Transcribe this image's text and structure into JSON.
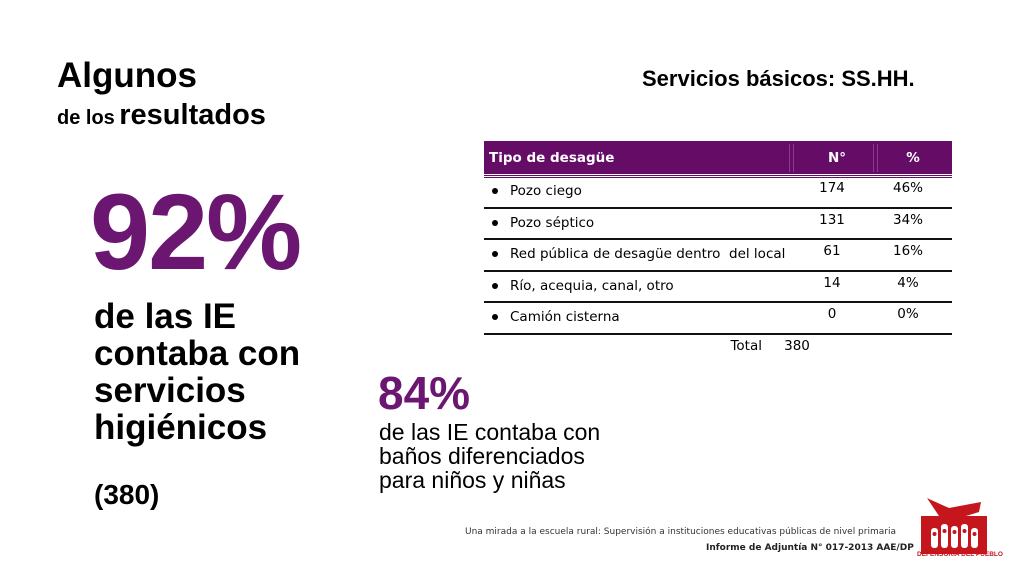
{
  "header": {
    "title_line1": "Algunos",
    "title_line2_small": "de los",
    "title_line2_big": "resultados",
    "section_title": "Servicios básicos: SS.HH."
  },
  "highlight_main": {
    "percent": "92%",
    "description": "de las IE contaba con servicios higiénicos",
    "count": "(380)"
  },
  "highlight_secondary": {
    "percent": "84%",
    "description_line1": "de las IE contaba con",
    "description_line2": "baños diferenciados",
    "description_line3": "para niños y niñas"
  },
  "table": {
    "headers": [
      "Tipo de desagüe",
      "N°",
      "%"
    ],
    "rows": [
      {
        "label": "Pozo ciego",
        "n": "174",
        "pct": "46%"
      },
      {
        "label": "Pozo séptico",
        "n": "131",
        "pct": "34%"
      },
      {
        "label": "Red pública de desagüe dentro  del local",
        "n": "61",
        "pct": "16%"
      },
      {
        "label": "Río, acequia, canal, otro",
        "n": "14",
        "pct": "4%"
      },
      {
        "label": "Camión cisterna",
        "n": "0",
        "pct": "0%"
      }
    ],
    "total_label": "Total",
    "total_value": "380"
  },
  "footer": {
    "line1": "Una mirada a la escuela rural: Supervisión a instituciones educativas públicas de nivel primaria",
    "line2": "Informe de Adjuntía N° 017-2013 AAE/DP"
  },
  "logo": {
    "text": "DEFENSORÍA DEL PUEBLO",
    "color": "#c4161c"
  },
  "colors": {
    "accent": "#6b1670",
    "table_header": "#650c66"
  }
}
